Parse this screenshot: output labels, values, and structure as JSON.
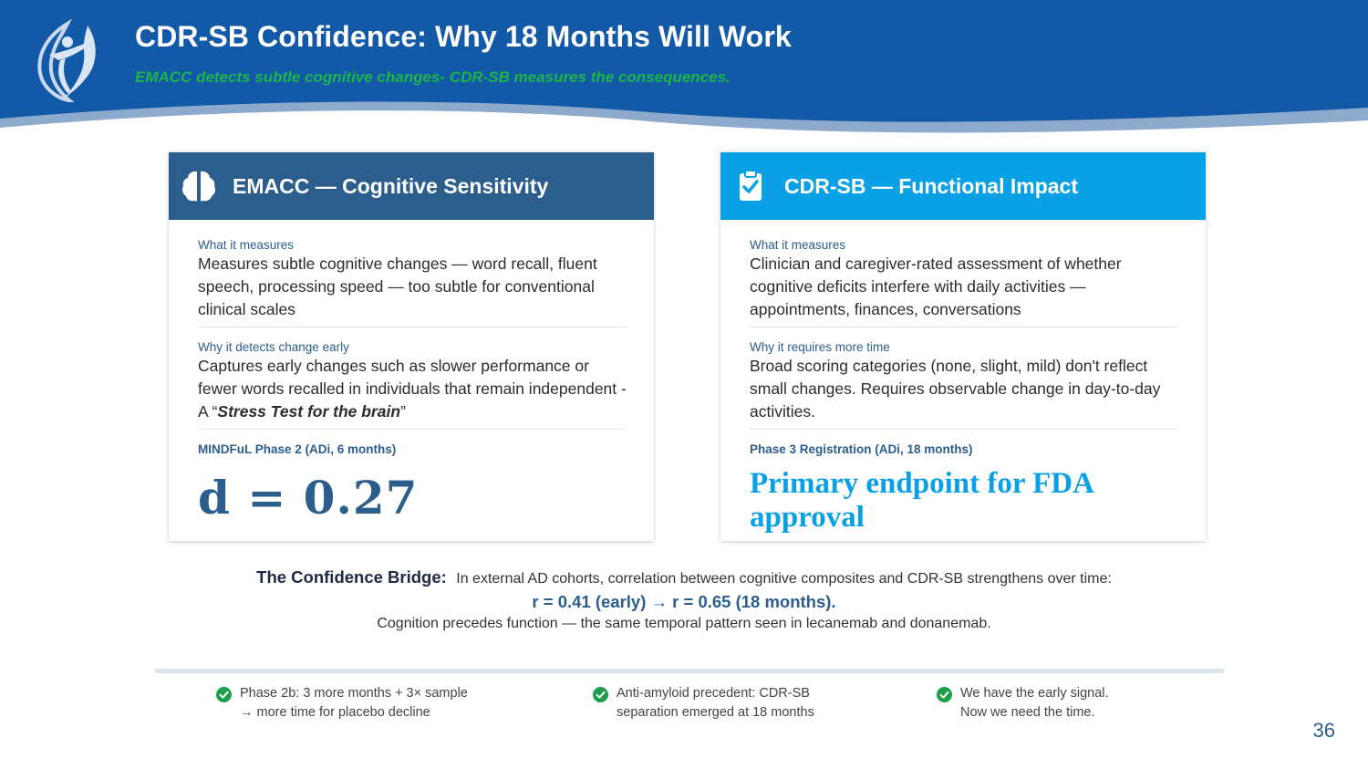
{
  "header": {
    "title": "CDR-SB Confidence: Why 18 Months Will Work",
    "subtitle": "EMACC detects subtle cognitive changes- CDR-SB measures the consequences."
  },
  "cards": {
    "left": {
      "title": "EMACC — Cognitive Sensitivity",
      "icon": "brain-icon",
      "what_label": "What it measures",
      "what_text": "Measures subtle cognitive changes — word recall, fluent speech, processing speed — too subtle for conventional clinical scales",
      "why_label": "Why it detects change early",
      "why_text_plain": "Captures early changes such as slower performance or fewer words recalled in individuals that remain independent  - A “",
      "why_text_emph": "Stress Test for the brain",
      "why_text_end": "”",
      "meta_label": "MINDFuL Phase 2 (ADi, 6 months)",
      "big_value": "d = 0.27"
    },
    "right": {
      "title": "CDR-SB — Functional Impact",
      "icon": "clipboard-check-icon",
      "what_label": "What it measures",
      "what_text": "Clinician and caregiver-rated assessment of whether cognitive deficits interfere with daily activities — appointments, finances, conversations",
      "why_label": "Why it requires more time",
      "why_text": "Broad scoring categories (none, slight, mild) don't reflect small changes. Requires observable change in day-to-day activities.",
      "meta_label": "Phase 3 Registration (ADi, 18 months)",
      "big_value": "Primary endpoint for FDA approval"
    }
  },
  "bridge": {
    "lead": "The Confidence Bridge:",
    "text": "In external AD cohorts, correlation between cognitive composites and CDR-SB strengthens over time:",
    "stats": "r = 0.41 (early) → r = 0.65 (18 months).",
    "footnote": "Cognition precedes function — the same temporal pattern seen in lecanemab and donanemab."
  },
  "points": [
    {
      "line1": "Phase 2b: 3 more months + 3× sample",
      "line2": "→ more time for placebo decline"
    },
    {
      "line1": "Anti-amyloid precedent: CDR-SB",
      "line2": "separation emerged at 18 months"
    },
    {
      "line1": "We have the early signal.",
      "line2": "Now we need the time."
    }
  ],
  "page_number": "36",
  "colors": {
    "header_blue": "#1259a8",
    "card_left": "#2b5e8c",
    "card_right": "#0aa0e6",
    "subtitle_green": "#1fb34a",
    "check_green": "#1e9e4a"
  }
}
